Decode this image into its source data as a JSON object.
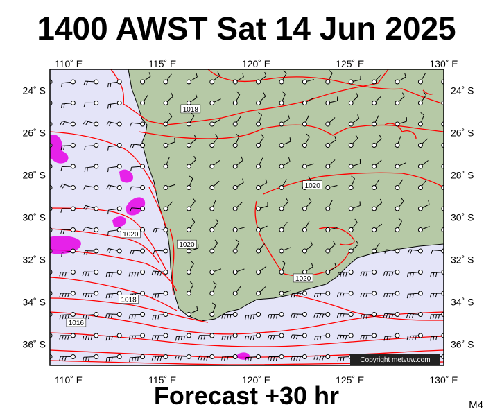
{
  "header": {
    "title": "1400 AWST Sat 14 Jun 2025"
  },
  "footer": {
    "forecast": "Forecast +30 hr",
    "model_code": "M4"
  },
  "map": {
    "lon_range": [
      109,
      130
    ],
    "lat_range": [
      -37,
      -23
    ],
    "lon_ticks": [
      {
        "value": 110,
        "label": "110˚ E"
      },
      {
        "value": 115,
        "label": "115˚ E"
      },
      {
        "value": 120,
        "label": "120˚ E"
      },
      {
        "value": 125,
        "label": "125˚ E"
      },
      {
        "value": 130,
        "label": "130˚ E"
      }
    ],
    "lat_ticks": [
      {
        "value": -24,
        "label": "24˚ S"
      },
      {
        "value": -26,
        "label": "26˚ S"
      },
      {
        "value": -28,
        "label": "28˚ S"
      },
      {
        "value": -30,
        "label": "30˚ S"
      },
      {
        "value": -32,
        "label": "32˚ S"
      },
      {
        "value": -34,
        "label": "34˚ S"
      },
      {
        "value": -36,
        "label": "36˚ S"
      }
    ],
    "colors": {
      "ocean": "#e4e4f8",
      "land": "#b6c9a6",
      "isobar": "#ff0000",
      "precip": "#e600e6",
      "wind_barb": "#000000"
    },
    "isobar_labels": [
      {
        "text": "1018",
        "lon": 116.5,
        "lat": -24.9
      },
      {
        "text": "1020",
        "lon": 123.0,
        "lat": -28.5
      },
      {
        "text": "1020",
        "lon": 113.3,
        "lat": -30.8
      },
      {
        "text": "1020",
        "lon": 116.3,
        "lat": -31.3
      },
      {
        "text": "1020",
        "lon": 122.5,
        "lat": -32.9
      },
      {
        "text": "1018",
        "lon": 113.2,
        "lat": -33.9
      },
      {
        "text": "1016",
        "lon": 110.4,
        "lat": -35.0
      }
    ],
    "copyright": "Copyright metvuw.com"
  }
}
